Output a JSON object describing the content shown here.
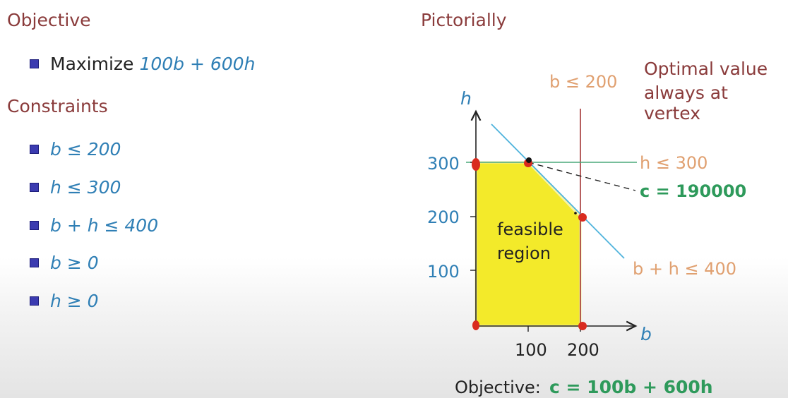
{
  "left": {
    "objective_heading": "Objective",
    "objective_items": [
      {
        "prefix": "Maximize",
        "expr": "100b + 600h"
      }
    ],
    "constraints_heading": "Constraints",
    "constraints": [
      "b ≤ 200",
      "h ≤ 300",
      "b + h ≤ 400",
      "b ≥ 0",
      "h ≥ 0"
    ]
  },
  "right": {
    "heading": "Pictorially",
    "note_line1": "Optimal value",
    "note_line2": "always at vertex",
    "axis_h_label": "h",
    "axis_b_label": "b",
    "y_ticks": [
      "300",
      "200",
      "100"
    ],
    "x_ticks": [
      "100",
      "200"
    ],
    "label_b_constraint": "b ≤ 200",
    "label_h_constraint": "h ≤ 300",
    "label_sum_constraint": "b + h ≤ 400",
    "label_c_value": "c = 190000",
    "region_line1": "feasible",
    "region_line2": "region",
    "objective_prefix": "Objective:",
    "objective_formula": "c = 100b + 600h"
  },
  "colors": {
    "heading": "#8a3b3b",
    "math_blue": "#2f7fb5",
    "constraint_orange": "#e0a070",
    "c_green": "#2e9a5b",
    "region_yellow": "#f3ea2a",
    "vertex_red": "#d92b1f",
    "line_cyan": "#4fb3dc",
    "line_red": "#a33535",
    "line_green": "#4aa87a"
  }
}
